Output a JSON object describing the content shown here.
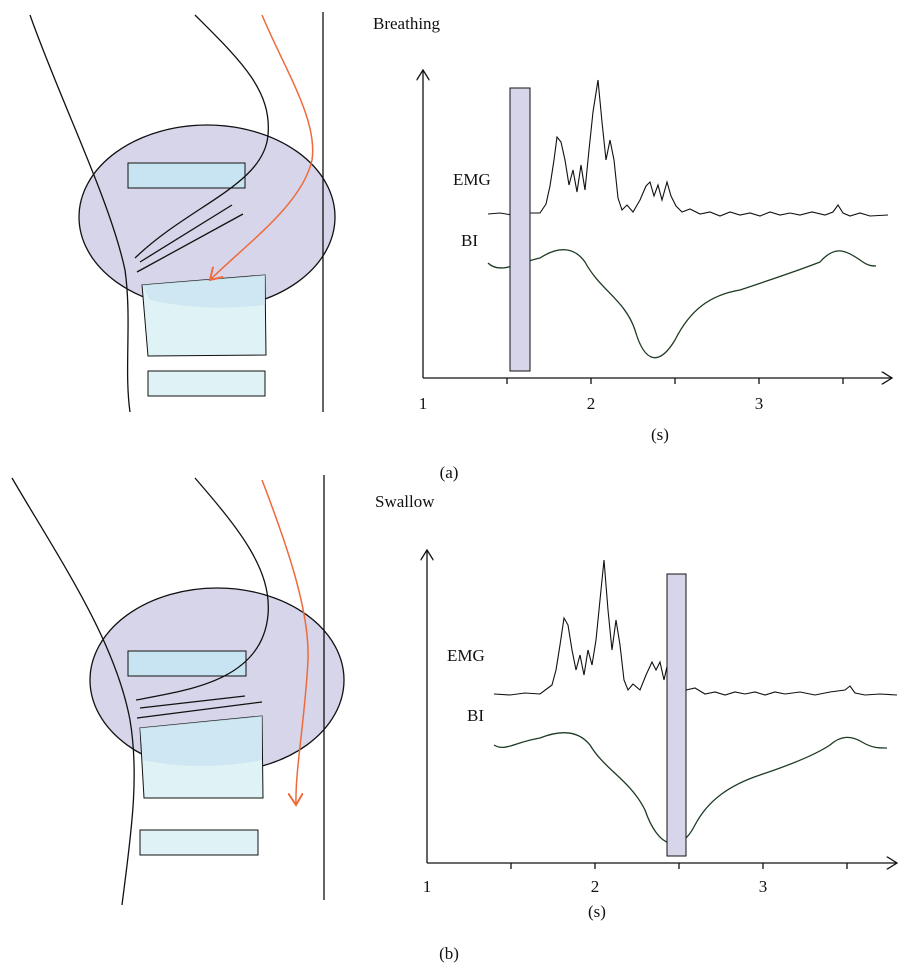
{
  "panels": [
    {
      "title": "Breathing",
      "traces": [
        "EMG",
        "BI"
      ],
      "x_axis": {
        "ticks": [
          1,
          2,
          3
        ],
        "label": "(s)"
      },
      "caption": "(a)"
    },
    {
      "title": "Swallow",
      "traces": [
        "EMG",
        "BI"
      ],
      "x_axis": {
        "ticks": [
          1,
          2,
          3
        ],
        "label": "(s)"
      },
      "caption": "(b)"
    }
  ]
}
